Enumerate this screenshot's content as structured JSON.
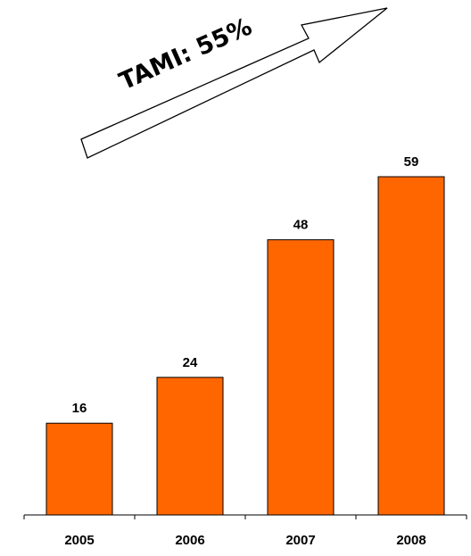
{
  "chart_data": {
    "type": "bar",
    "categories": [
      "2005",
      "2006",
      "2007",
      "2008"
    ],
    "values": [
      16,
      24,
      48,
      59
    ],
    "title": "",
    "xlabel": "",
    "ylabel": "",
    "ylim": [
      0,
      59
    ],
    "grid": false,
    "data_labels": true,
    "annotation": {
      "text": "TAMI: 55%",
      "shape": "arrow-up-right"
    },
    "colors": {
      "bar": "#ff6600",
      "bar_stroke": "#000000",
      "text": "#000000",
      "axis": "#000000",
      "arrow_fill": "#ffffff",
      "arrow_stroke": "#000000"
    }
  }
}
